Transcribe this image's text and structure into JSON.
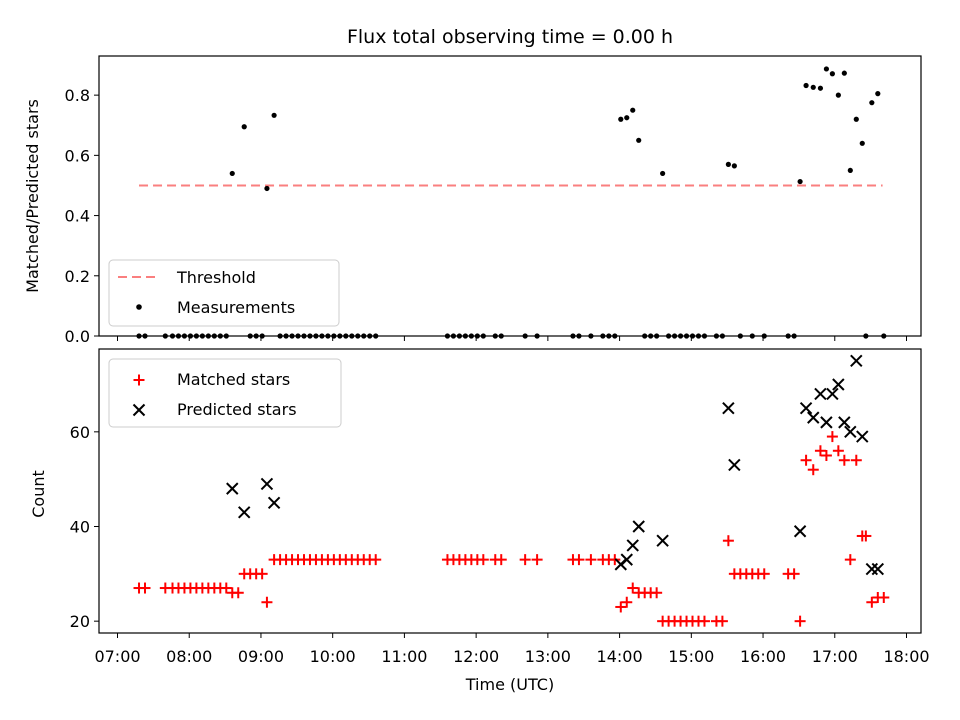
{
  "chart_data": [
    {
      "type": "scatter",
      "title": "Flux total observing time = 0.00 h",
      "ylabel": "Matched/Predicted stars",
      "xlabel": "",
      "xlim": [
        "07:00",
        "18:00"
      ],
      "ylim": [
        0,
        0.93
      ],
      "yticks": [
        "0.0",
        "0.2",
        "0.4",
        "0.6",
        "0.8"
      ],
      "legend_position": "lower-left",
      "colors": {
        "threshold": "#fa7f7f",
        "measurements": "#000000"
      },
      "threshold": {
        "name": "Threshold",
        "y": 0.5,
        "x_start": "07:18",
        "x_end": "17:40"
      },
      "measurements": {
        "name": "Measurements",
        "points": [
          [
            "07:18",
            0
          ],
          [
            "07:23",
            0
          ],
          [
            "07:40",
            0
          ],
          [
            "07:46",
            0
          ],
          [
            "07:51",
            0
          ],
          [
            "07:56",
            0
          ],
          [
            "08:01",
            0
          ],
          [
            "08:06",
            0
          ],
          [
            "08:11",
            0
          ],
          [
            "08:16",
            0
          ],
          [
            "08:21",
            0
          ],
          [
            "08:26",
            0
          ],
          [
            "08:31",
            0
          ],
          [
            "08:36",
            0.54
          ],
          [
            "08:46",
            0.695
          ],
          [
            "09:05",
            0.49
          ],
          [
            "09:11",
            0.733
          ],
          [
            "08:51",
            0
          ],
          [
            "08:56",
            0
          ],
          [
            "09:01",
            0
          ],
          [
            "09:16",
            0
          ],
          [
            "09:21",
            0
          ],
          [
            "09:26",
            0
          ],
          [
            "09:31",
            0
          ],
          [
            "09:36",
            0
          ],
          [
            "09:41",
            0
          ],
          [
            "09:46",
            0
          ],
          [
            "09:51",
            0
          ],
          [
            "09:56",
            0
          ],
          [
            "10:01",
            0
          ],
          [
            "10:06",
            0
          ],
          [
            "10:11",
            0
          ],
          [
            "10:16",
            0
          ],
          [
            "10:21",
            0
          ],
          [
            "10:26",
            0
          ],
          [
            "10:31",
            0
          ],
          [
            "10:36",
            0
          ],
          [
            "11:36",
            0
          ],
          [
            "11:41",
            0
          ],
          [
            "11:46",
            0
          ],
          [
            "11:51",
            0
          ],
          [
            "11:56",
            0
          ],
          [
            "12:01",
            0
          ],
          [
            "12:06",
            0
          ],
          [
            "12:16",
            0
          ],
          [
            "12:21",
            0
          ],
          [
            "12:41",
            0
          ],
          [
            "12:51",
            0
          ],
          [
            "13:21",
            0
          ],
          [
            "13:26",
            0
          ],
          [
            "13:36",
            0
          ],
          [
            "13:46",
            0
          ],
          [
            "13:51",
            0
          ],
          [
            "13:56",
            0
          ],
          [
            "14:01",
            0.72
          ],
          [
            "14:06",
            0.725
          ],
          [
            "14:11",
            0.75
          ],
          [
            "14:16",
            0.65
          ],
          [
            "14:36",
            0.54
          ],
          [
            "14:21",
            0
          ],
          [
            "14:26",
            0
          ],
          [
            "14:31",
            0
          ],
          [
            "14:41",
            0
          ],
          [
            "14:46",
            0
          ],
          [
            "14:51",
            0
          ],
          [
            "14:56",
            0
          ],
          [
            "15:01",
            0
          ],
          [
            "15:06",
            0
          ],
          [
            "15:11",
            0
          ],
          [
            "15:21",
            0
          ],
          [
            "15:26",
            0
          ],
          [
            "15:31",
            0.57
          ],
          [
            "15:36",
            0.565
          ],
          [
            "15:41",
            0
          ],
          [
            "15:51",
            0
          ],
          [
            "16:01",
            0
          ],
          [
            "16:21",
            0
          ],
          [
            "16:26",
            0
          ],
          [
            "16:31",
            0.513
          ],
          [
            "16:36",
            0.832
          ],
          [
            "16:42",
            0.826
          ],
          [
            "16:48",
            0.823
          ],
          [
            "16:53",
            0.887
          ],
          [
            "16:58",
            0.871
          ],
          [
            "17:03",
            0.8
          ],
          [
            "17:08",
            0.873
          ],
          [
            "17:13",
            0.55
          ],
          [
            "17:18",
            0.72
          ],
          [
            "17:23",
            0.64
          ],
          [
            "17:31",
            0.775
          ],
          [
            "17:36",
            0.805
          ],
          [
            "17:26",
            0
          ],
          [
            "17:41",
            0
          ]
        ]
      }
    },
    {
      "type": "scatter",
      "title": "",
      "xlabel": "Time (UTC)",
      "ylabel": "Count",
      "xlim": [
        "07:00",
        "18:00"
      ],
      "ylim": [
        17.5,
        77.5
      ],
      "xticks": [
        "07:00",
        "08:00",
        "09:00",
        "10:00",
        "11:00",
        "12:00",
        "13:00",
        "14:00",
        "15:00",
        "16:00",
        "17:00",
        "18:00"
      ],
      "yticks": [
        "20",
        "40",
        "60"
      ],
      "legend_position": "upper-left",
      "colors": {
        "matched": "#ff0000",
        "predicted": "#000000"
      },
      "series": [
        {
          "name": "Matched stars",
          "marker": "+",
          "points": [
            [
              "07:18",
              27
            ],
            [
              "07:23",
              27
            ],
            [
              "07:40",
              27
            ],
            [
              "07:46",
              27
            ],
            [
              "07:51",
              27
            ],
            [
              "07:56",
              27
            ],
            [
              "08:01",
              27
            ],
            [
              "08:06",
              27
            ],
            [
              "08:11",
              27
            ],
            [
              "08:16",
              27
            ],
            [
              "08:21",
              27
            ],
            [
              "08:26",
              27
            ],
            [
              "08:31",
              27
            ],
            [
              "08:36",
              26
            ],
            [
              "08:41",
              26
            ],
            [
              "08:46",
              30
            ],
            [
              "08:51",
              30
            ],
            [
              "08:56",
              30
            ],
            [
              "09:01",
              30
            ],
            [
              "09:05",
              24
            ],
            [
              "09:11",
              33
            ],
            [
              "09:16",
              33
            ],
            [
              "09:21",
              33
            ],
            [
              "09:26",
              33
            ],
            [
              "09:31",
              33
            ],
            [
              "09:36",
              33
            ],
            [
              "09:41",
              33
            ],
            [
              "09:46",
              33
            ],
            [
              "09:51",
              33
            ],
            [
              "09:56",
              33
            ],
            [
              "10:01",
              33
            ],
            [
              "10:06",
              33
            ],
            [
              "10:11",
              33
            ],
            [
              "10:16",
              33
            ],
            [
              "10:21",
              33
            ],
            [
              "10:26",
              33
            ],
            [
              "10:31",
              33
            ],
            [
              "10:36",
              33
            ],
            [
              "11:36",
              33
            ],
            [
              "11:41",
              33
            ],
            [
              "11:46",
              33
            ],
            [
              "11:51",
              33
            ],
            [
              "11:56",
              33
            ],
            [
              "12:01",
              33
            ],
            [
              "12:06",
              33
            ],
            [
              "12:16",
              33
            ],
            [
              "12:21",
              33
            ],
            [
              "12:41",
              33
            ],
            [
              "12:51",
              33
            ],
            [
              "13:21",
              33
            ],
            [
              "13:26",
              33
            ],
            [
              "13:36",
              33
            ],
            [
              "13:46",
              33
            ],
            [
              "13:51",
              33
            ],
            [
              "13:56",
              33
            ],
            [
              "14:01",
              23
            ],
            [
              "14:06",
              24
            ],
            [
              "14:11",
              27
            ],
            [
              "14:16",
              26
            ],
            [
              "14:21",
              26
            ],
            [
              "14:26",
              26
            ],
            [
              "14:31",
              26
            ],
            [
              "14:36",
              20
            ],
            [
              "14:41",
              20
            ],
            [
              "14:46",
              20
            ],
            [
              "14:51",
              20
            ],
            [
              "14:56",
              20
            ],
            [
              "15:01",
              20
            ],
            [
              "15:06",
              20
            ],
            [
              "15:11",
              20
            ],
            [
              "15:21",
              20
            ],
            [
              "15:26",
              20
            ],
            [
              "15:31",
              37
            ],
            [
              "15:36",
              30
            ],
            [
              "15:41",
              30
            ],
            [
              "15:46",
              30
            ],
            [
              "15:51",
              30
            ],
            [
              "15:56",
              30
            ],
            [
              "16:01",
              30
            ],
            [
              "16:21",
              30
            ],
            [
              "16:26",
              30
            ],
            [
              "16:31",
              20
            ],
            [
              "16:36",
              54
            ],
            [
              "16:42",
              52
            ],
            [
              "16:48",
              56
            ],
            [
              "16:53",
              55
            ],
            [
              "16:58",
              59
            ],
            [
              "17:03",
              56
            ],
            [
              "17:08",
              54
            ],
            [
              "17:13",
              33
            ],
            [
              "17:18",
              54
            ],
            [
              "17:23",
              38
            ],
            [
              "17:26",
              38
            ],
            [
              "17:31",
              24
            ],
            [
              "17:36",
              25
            ],
            [
              "17:41",
              25
            ]
          ]
        },
        {
          "name": "Predicted stars",
          "marker": "x",
          "points": [
            [
              "08:36",
              48
            ],
            [
              "08:46",
              43
            ],
            [
              "09:05",
              49
            ],
            [
              "09:11",
              45
            ],
            [
              "14:01",
              32
            ],
            [
              "14:06",
              33
            ],
            [
              "14:11",
              36
            ],
            [
              "14:16",
              40
            ],
            [
              "14:36",
              37
            ],
            [
              "15:31",
              65
            ],
            [
              "15:36",
              53
            ],
            [
              "16:31",
              39
            ],
            [
              "16:36",
              65
            ],
            [
              "16:42",
              63
            ],
            [
              "16:48",
              68
            ],
            [
              "16:53",
              62
            ],
            [
              "16:58",
              68
            ],
            [
              "17:03",
              70
            ],
            [
              "17:08",
              62
            ],
            [
              "17:13",
              60
            ],
            [
              "17:18",
              75
            ],
            [
              "17:23",
              59
            ],
            [
              "17:31",
              31
            ],
            [
              "17:36",
              31
            ]
          ]
        }
      ]
    }
  ]
}
